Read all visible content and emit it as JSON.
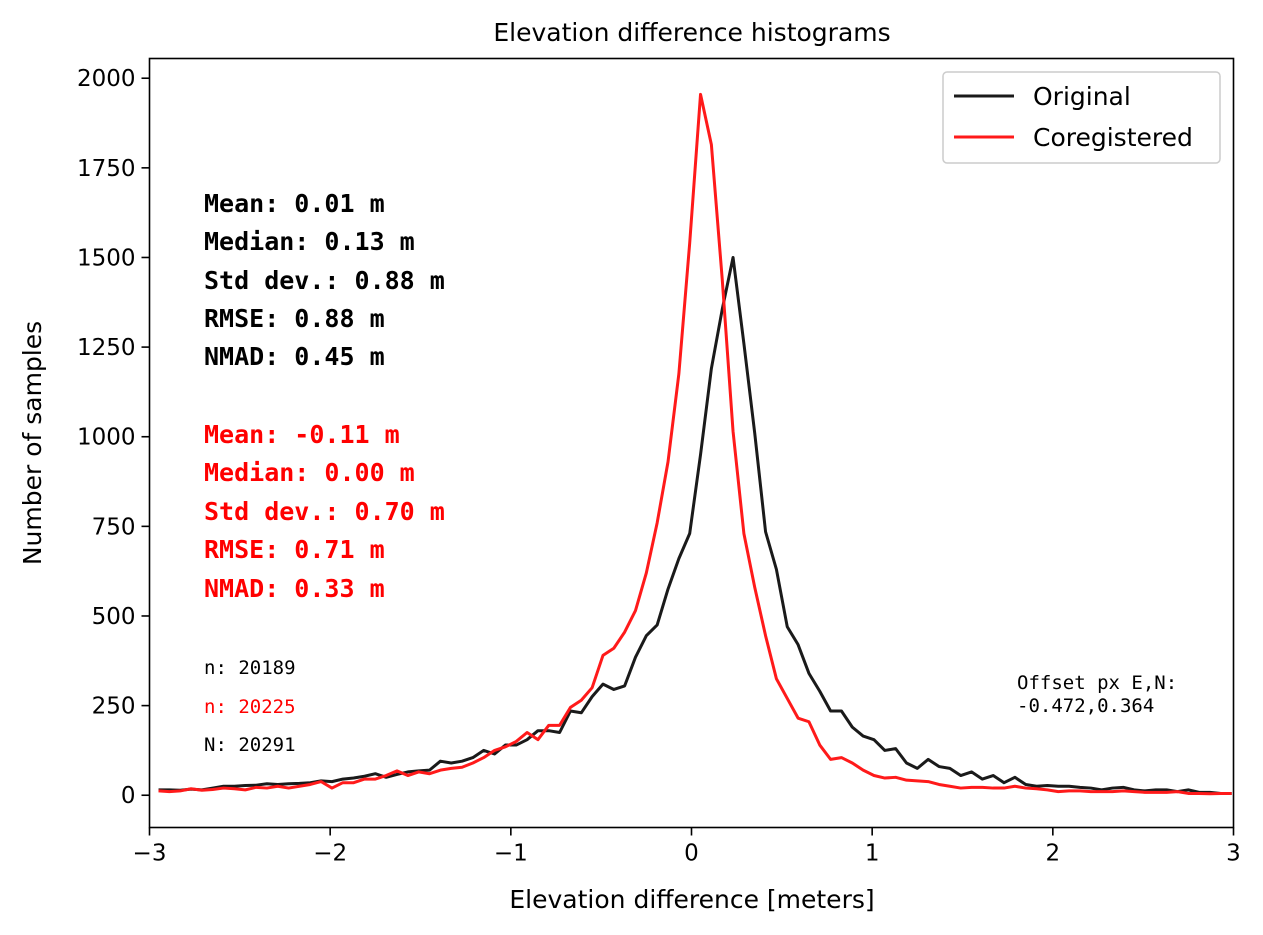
{
  "chart_data": {
    "type": "line",
    "title": "Elevation difference histograms",
    "xlabel": "Elevation difference [meters]",
    "ylabel": "Number of samples",
    "xlim": [
      -3,
      3
    ],
    "ylim": [
      -90,
      2055
    ],
    "xticks": [
      -3,
      -2,
      -1,
      0,
      1,
      2,
      3
    ],
    "xtick_labels": [
      "−3",
      "−2",
      "−1",
      "0",
      "1",
      "2",
      "3"
    ],
    "yticks": [
      0,
      250,
      500,
      750,
      1000,
      1250,
      1500,
      1750,
      2000
    ],
    "ytick_labels": [
      "0",
      "250",
      "500",
      "750",
      "1000",
      "1250",
      "1500",
      "1750",
      "2000"
    ],
    "grid": false,
    "legend_position": "top-right",
    "series": [
      {
        "name": "Original",
        "color": "#1a1a1a",
        "x": [
          -2.95,
          -2.89,
          -2.83,
          -2.77,
          -2.71,
          -2.65,
          -2.59,
          -2.53,
          -2.47,
          -2.41,
          -2.35,
          -2.29,
          -2.23,
          -2.17,
          -2.11,
          -2.05,
          -1.99,
          -1.93,
          -1.87,
          -1.81,
          -1.75,
          -1.69,
          -1.63,
          -1.57,
          -1.51,
          -1.45,
          -1.39,
          -1.33,
          -1.27,
          -1.21,
          -1.15,
          -1.09,
          -1.03,
          -0.97,
          -0.91,
          -0.85,
          -0.79,
          -0.73,
          -0.67,
          -0.61,
          -0.55,
          -0.49,
          -0.43,
          -0.37,
          -0.31,
          -0.25,
          -0.19,
          -0.13,
          -0.07,
          -0.01,
          0.05,
          0.11,
          0.17,
          0.23,
          0.29,
          0.35,
          0.41,
          0.47,
          0.53,
          0.59,
          0.65,
          0.71,
          0.77,
          0.83,
          0.89,
          0.95,
          1.01,
          1.07,
          1.13,
          1.19,
          1.25,
          1.31,
          1.37,
          1.43,
          1.49,
          1.55,
          1.61,
          1.67,
          1.73,
          1.79,
          1.85,
          1.91,
          1.97,
          2.03,
          2.09,
          2.15,
          2.21,
          2.27,
          2.33,
          2.39,
          2.45,
          2.51,
          2.57,
          2.63,
          2.69,
          2.75,
          2.81,
          2.87,
          2.93,
          2.99
        ],
        "y": [
          15,
          15,
          14,
          17,
          15,
          20,
          25,
          25,
          27,
          28,
          32,
          30,
          32,
          33,
          35,
          40,
          38,
          45,
          48,
          53,
          60,
          50,
          58,
          65,
          68,
          70,
          95,
          90,
          95,
          105,
          125,
          115,
          140,
          140,
          155,
          180,
          180,
          175,
          235,
          230,
          275,
          310,
          295,
          305,
          385,
          445,
          475,
          575,
          660,
          730,
          950,
          1190,
          1355,
          1500,
          1260,
          1010,
          735,
          630,
          470,
          420,
          340,
          290,
          235,
          235,
          190,
          165,
          155,
          125,
          130,
          90,
          75,
          100,
          80,
          75,
          55,
          65,
          45,
          55,
          35,
          50,
          30,
          25,
          27,
          25,
          25,
          22,
          20,
          15,
          20,
          22,
          15,
          12,
          15,
          15,
          10,
          15,
          8,
          8,
          5,
          5
        ]
      },
      {
        "name": "Coregistered",
        "color": "#ff1a1a",
        "x": [
          -2.95,
          -2.89,
          -2.83,
          -2.77,
          -2.71,
          -2.65,
          -2.59,
          -2.53,
          -2.47,
          -2.41,
          -2.35,
          -2.29,
          -2.23,
          -2.17,
          -2.11,
          -2.05,
          -1.99,
          -1.93,
          -1.87,
          -1.81,
          -1.75,
          -1.69,
          -1.63,
          -1.57,
          -1.51,
          -1.45,
          -1.39,
          -1.33,
          -1.27,
          -1.21,
          -1.15,
          -1.09,
          -1.03,
          -0.97,
          -0.91,
          -0.85,
          -0.79,
          -0.73,
          -0.67,
          -0.61,
          -0.55,
          -0.49,
          -0.43,
          -0.37,
          -0.31,
          -0.25,
          -0.19,
          -0.13,
          -0.07,
          -0.01,
          0.05,
          0.11,
          0.17,
          0.23,
          0.29,
          0.35,
          0.41,
          0.47,
          0.53,
          0.59,
          0.65,
          0.71,
          0.77,
          0.83,
          0.89,
          0.95,
          1.01,
          1.07,
          1.13,
          1.19,
          1.25,
          1.31,
          1.37,
          1.43,
          1.49,
          1.55,
          1.61,
          1.67,
          1.73,
          1.79,
          1.85,
          1.91,
          1.97,
          2.03,
          2.09,
          2.15,
          2.21,
          2.27,
          2.33,
          2.39,
          2.45,
          2.51,
          2.57,
          2.63,
          2.69,
          2.75,
          2.81,
          2.87,
          2.93,
          2.99
        ],
        "y": [
          12,
          10,
          12,
          18,
          14,
          16,
          20,
          18,
          15,
          22,
          20,
          25,
          20,
          25,
          30,
          38,
          20,
          35,
          35,
          45,
          45,
          55,
          68,
          55,
          65,
          60,
          70,
          75,
          78,
          90,
          105,
          125,
          135,
          150,
          175,
          155,
          195,
          195,
          245,
          265,
          300,
          390,
          410,
          455,
          515,
          620,
          760,
          930,
          1175,
          1540,
          1955,
          1815,
          1440,
          1015,
          730,
          580,
          445,
          325,
          270,
          215,
          205,
          140,
          100,
          105,
          90,
          70,
          55,
          48,
          50,
          42,
          40,
          38,
          30,
          25,
          20,
          22,
          22,
          20,
          20,
          25,
          20,
          18,
          15,
          10,
          12,
          12,
          10,
          10,
          10,
          12,
          10,
          8,
          8,
          8,
          10,
          5,
          5,
          4,
          5,
          5
        ]
      }
    ],
    "annotations": {
      "original_stats": [
        "Mean: 0.01 m",
        "Median: 0.13 m",
        "Std dev.: 0.88 m",
        "RMSE: 0.88 m",
        "NMAD: 0.45 m"
      ],
      "coregistered_stats": [
        "Mean: -0.11 m",
        "Median: 0.00 m",
        "Std dev.: 0.70 m",
        "RMSE: 0.71 m",
        "NMAD: 0.33 m"
      ],
      "counts": [
        {
          "text": "n: 20189",
          "color": "#000000"
        },
        {
          "text": "n: 20225",
          "color": "#ff0000"
        },
        {
          "text": "N: 20291",
          "color": "#000000"
        }
      ],
      "offset_label": "Offset px E,N:",
      "offset_value": "-0.472,0.364"
    }
  }
}
